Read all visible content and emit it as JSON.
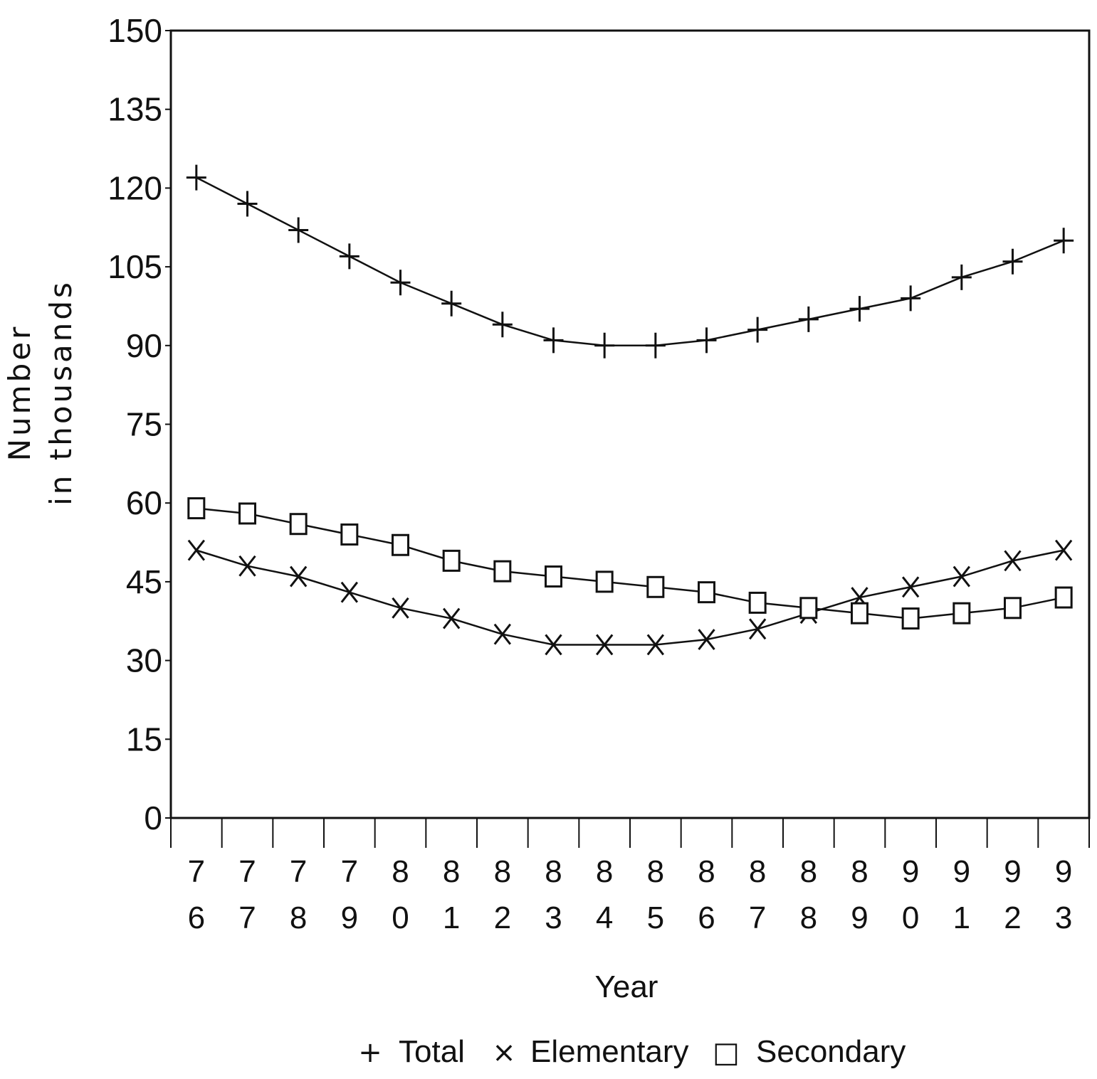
{
  "chart_data": {
    "type": "line",
    "title": "",
    "xlabel": "Year",
    "ylabel": [
      "Number",
      "in  thousands"
    ],
    "ylim": [
      0,
      150
    ],
    "yticks": [
      0,
      15,
      30,
      45,
      60,
      75,
      90,
      105,
      120,
      135,
      150
    ],
    "ytick_labels": [
      "0",
      "15",
      "30",
      "45",
      "60",
      "75",
      "90",
      "105",
      "120",
      "135",
      "150"
    ],
    "categories": [
      "76",
      "77",
      "78",
      "79",
      "80",
      "81",
      "82",
      "83",
      "84",
      "85",
      "86",
      "87",
      "88",
      "89",
      "90",
      "91",
      "92",
      "93"
    ],
    "category_labels": [
      [
        "7",
        "6"
      ],
      [
        "7",
        "7"
      ],
      [
        "7",
        "8"
      ],
      [
        "7",
        "9"
      ],
      [
        "8",
        "0"
      ],
      [
        "8",
        "1"
      ],
      [
        "8",
        "2"
      ],
      [
        "8",
        "3"
      ],
      [
        "8",
        "4"
      ],
      [
        "8",
        "5"
      ],
      [
        "8",
        "6"
      ],
      [
        "8",
        "7"
      ],
      [
        "8",
        "8"
      ],
      [
        "8",
        "9"
      ],
      [
        "9",
        "0"
      ],
      [
        "9",
        "1"
      ],
      [
        "9",
        "2"
      ],
      [
        "9",
        "3"
      ]
    ],
    "series": [
      {
        "name": "Total",
        "marker": "+",
        "values": [
          122,
          117,
          112,
          107,
          102,
          98,
          94,
          91,
          90,
          90,
          91,
          93,
          95,
          97,
          99,
          103,
          106,
          110
        ]
      },
      {
        "name": "Elementary",
        "marker": "×",
        "values": [
          51,
          48,
          46,
          43,
          40,
          38,
          35,
          33,
          33,
          33,
          34,
          36,
          39,
          42,
          44,
          46,
          49,
          51
        ]
      },
      {
        "name": "Secondary",
        "marker": "□",
        "values": [
          59,
          58,
          56,
          54,
          52,
          49,
          47,
          46,
          45,
          44,
          43,
          41,
          40,
          39,
          38,
          39,
          40,
          42
        ]
      }
    ],
    "grid": false,
    "legend_position": "bottom"
  },
  "legend": {
    "items": [
      {
        "symbol": "+",
        "label": "Total"
      },
      {
        "symbol": "×",
        "label": "Elementary"
      },
      {
        "symbol": "□",
        "label": "Secondary"
      }
    ]
  },
  "colors": {
    "ink": "#111111",
    "background": "#ffffff"
  }
}
